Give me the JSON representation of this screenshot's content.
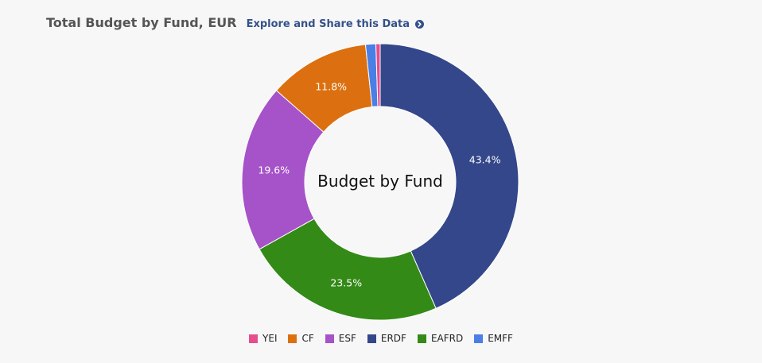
{
  "header": {
    "title": "Total Budget by Fund, EUR",
    "explore_link": "Explore and Share this Data",
    "link_icon": "chevron-circle-right-icon"
  },
  "chart_data": {
    "type": "pie",
    "center_label": "Budget by Fund",
    "categories": [
      "YEI",
      "CF",
      "ESF",
      "ERDF",
      "EAFRD",
      "EMFF"
    ],
    "slices_clockwise_from_top": [
      {
        "name": "ERDF",
        "value": 43.4,
        "label": "43.4%",
        "color": "#34478a"
      },
      {
        "name": "EAFRD",
        "value": 23.5,
        "label": "23.5%",
        "color": "#348a17"
      },
      {
        "name": "ESF",
        "value": 19.6,
        "label": "19.6%",
        "color": "#a652c9"
      },
      {
        "name": "CF",
        "value": 11.8,
        "label": "11.8%",
        "color": "#dc7010"
      },
      {
        "name": "EMFF",
        "value": 1.2,
        "label": "",
        "color": "#4a7fe6"
      },
      {
        "name": "YEI",
        "value": 0.5,
        "label": "",
        "color": "#e44e8c"
      }
    ],
    "legend": {
      "placement": "bottom-center",
      "items": [
        {
          "name": "YEI",
          "color": "#e44e8c"
        },
        {
          "name": "CF",
          "color": "#dc7010"
        },
        {
          "name": "ESF",
          "color": "#a652c9"
        },
        {
          "name": "ERDF",
          "color": "#34478a"
        },
        {
          "name": "EAFRD",
          "color": "#348a17"
        },
        {
          "name": "EMFF",
          "color": "#4a7fe6"
        }
      ]
    }
  }
}
